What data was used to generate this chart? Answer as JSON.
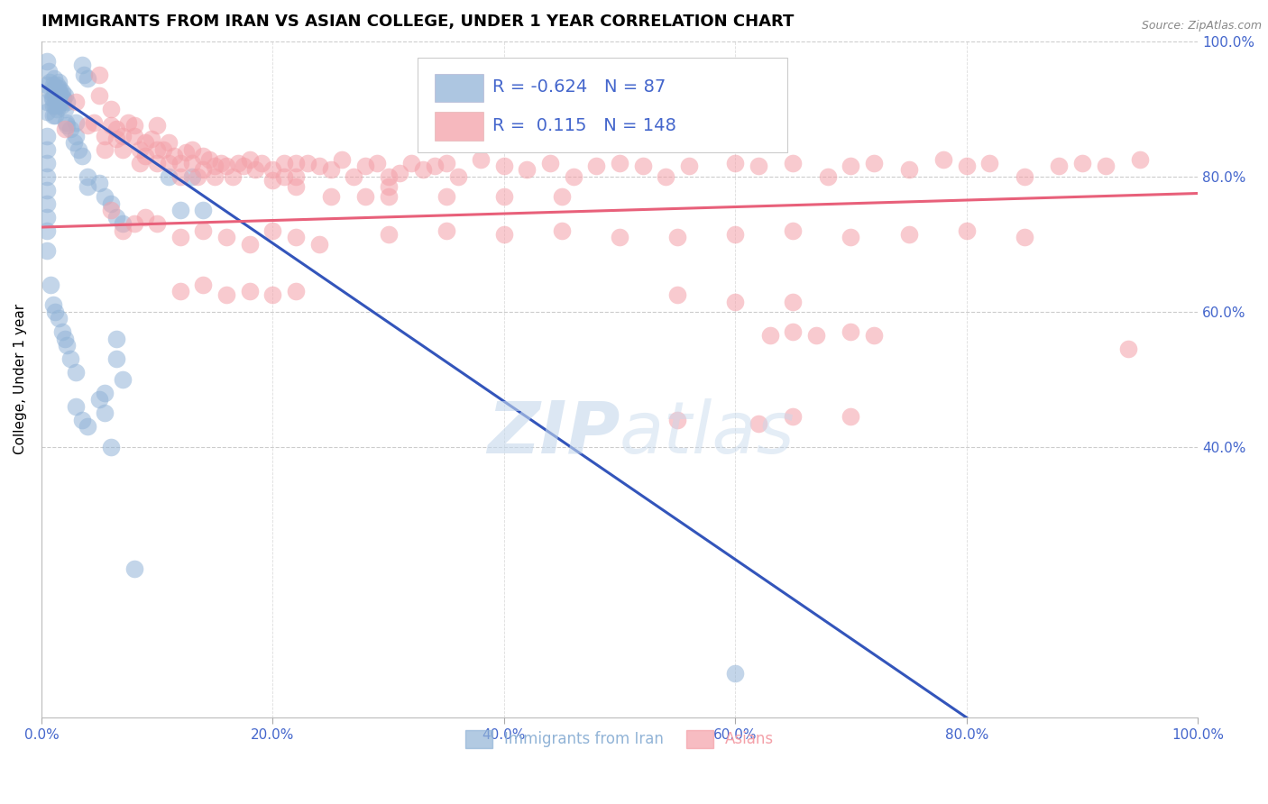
{
  "title": "IMMIGRANTS FROM IRAN VS ASIAN COLLEGE, UNDER 1 YEAR CORRELATION CHART",
  "source": "Source: ZipAtlas.com",
  "ylabel": "College, Under 1 year",
  "legend_label1": "Immigrants from Iran",
  "legend_label2": "Asians",
  "r1": "-0.624",
  "n1": "87",
  "r2": "0.115",
  "n2": "148",
  "blue_color": "#92B4D7",
  "pink_color": "#F4A0A8",
  "line_blue": "#3355BB",
  "line_pink": "#E8607A",
  "text_blue": "#4466CC",
  "watermark_color": "#C5D8EC",
  "blue_scatter": [
    [
      0.5,
      97.0
    ],
    [
      0.5,
      93.5
    ],
    [
      0.5,
      91.0
    ],
    [
      0.5,
      89.5
    ],
    [
      0.6,
      95.5
    ],
    [
      0.7,
      94.0
    ],
    [
      0.8,
      92.5
    ],
    [
      0.9,
      91.5
    ],
    [
      1.0,
      93.5
    ],
    [
      1.0,
      91.5
    ],
    [
      1.0,
      90.5
    ],
    [
      1.0,
      89.0
    ],
    [
      1.1,
      94.5
    ],
    [
      1.1,
      93.0
    ],
    [
      1.2,
      92.0
    ],
    [
      1.2,
      90.5
    ],
    [
      1.2,
      89.0
    ],
    [
      1.3,
      93.5
    ],
    [
      1.3,
      91.5
    ],
    [
      1.3,
      90.0
    ],
    [
      1.4,
      93.0
    ],
    [
      1.4,
      91.5
    ],
    [
      1.4,
      90.5
    ],
    [
      1.5,
      94.0
    ],
    [
      1.5,
      92.5
    ],
    [
      1.5,
      91.0
    ],
    [
      1.6,
      93.0
    ],
    [
      1.6,
      91.5
    ],
    [
      1.7,
      92.0
    ],
    [
      1.7,
      90.5
    ],
    [
      1.8,
      92.5
    ],
    [
      1.8,
      91.0
    ],
    [
      1.9,
      91.5
    ],
    [
      2.0,
      92.0
    ],
    [
      2.0,
      90.0
    ],
    [
      2.1,
      88.0
    ],
    [
      2.2,
      91.0
    ],
    [
      2.2,
      87.5
    ],
    [
      2.5,
      87.0
    ],
    [
      2.8,
      85.0
    ],
    [
      3.0,
      88.0
    ],
    [
      3.0,
      86.0
    ],
    [
      3.2,
      84.0
    ],
    [
      3.5,
      83.0
    ],
    [
      4.0,
      80.0
    ],
    [
      4.0,
      78.5
    ],
    [
      5.0,
      79.0
    ],
    [
      5.5,
      77.0
    ],
    [
      6.0,
      76.0
    ],
    [
      6.5,
      74.0
    ],
    [
      7.0,
      73.0
    ],
    [
      3.5,
      96.5
    ],
    [
      3.7,
      95.0
    ],
    [
      4.0,
      94.5
    ],
    [
      0.5,
      86.0
    ],
    [
      0.5,
      84.0
    ],
    [
      0.5,
      82.0
    ],
    [
      0.5,
      80.0
    ],
    [
      0.5,
      78.0
    ],
    [
      0.5,
      76.0
    ],
    [
      0.5,
      74.0
    ],
    [
      0.5,
      72.0
    ],
    [
      0.5,
      69.0
    ],
    [
      0.8,
      64.0
    ],
    [
      1.0,
      61.0
    ],
    [
      1.2,
      60.0
    ],
    [
      1.5,
      59.0
    ],
    [
      1.8,
      57.0
    ],
    [
      2.0,
      56.0
    ],
    [
      2.2,
      55.0
    ],
    [
      2.5,
      53.0
    ],
    [
      3.0,
      51.0
    ],
    [
      5.0,
      47.0
    ],
    [
      5.5,
      45.0
    ],
    [
      3.0,
      46.0
    ],
    [
      3.5,
      44.0
    ],
    [
      4.0,
      43.0
    ],
    [
      5.5,
      48.0
    ],
    [
      6.0,
      40.0
    ],
    [
      6.5,
      56.0
    ],
    [
      6.5,
      53.0
    ],
    [
      7.0,
      50.0
    ],
    [
      8.0,
      22.0
    ],
    [
      12.0,
      75.0
    ],
    [
      14.0,
      75.0
    ],
    [
      11.0,
      80.0
    ],
    [
      13.0,
      80.0
    ],
    [
      60.0,
      6.5
    ]
  ],
  "pink_scatter": [
    [
      2.0,
      87.0
    ],
    [
      3.0,
      91.0
    ],
    [
      4.0,
      87.5
    ],
    [
      4.5,
      88.0
    ],
    [
      5.0,
      95.0
    ],
    [
      5.0,
      92.0
    ],
    [
      5.5,
      86.0
    ],
    [
      5.5,
      84.0
    ],
    [
      6.0,
      90.0
    ],
    [
      6.0,
      87.5
    ],
    [
      6.5,
      87.0
    ],
    [
      6.5,
      85.5
    ],
    [
      7.0,
      86.0
    ],
    [
      7.0,
      84.0
    ],
    [
      7.5,
      88.0
    ],
    [
      8.0,
      87.5
    ],
    [
      8.0,
      86.0
    ],
    [
      8.5,
      84.0
    ],
    [
      8.5,
      82.0
    ],
    [
      9.0,
      85.0
    ],
    [
      9.0,
      83.0
    ],
    [
      9.5,
      85.5
    ],
    [
      10.0,
      87.5
    ],
    [
      10.0,
      84.0
    ],
    [
      10.0,
      82.0
    ],
    [
      10.5,
      84.0
    ],
    [
      11.0,
      85.0
    ],
    [
      11.0,
      82.0
    ],
    [
      11.5,
      83.0
    ],
    [
      12.0,
      82.0
    ],
    [
      12.0,
      80.0
    ],
    [
      12.5,
      83.5
    ],
    [
      13.0,
      84.0
    ],
    [
      13.0,
      82.0
    ],
    [
      13.5,
      80.0
    ],
    [
      14.0,
      83.0
    ],
    [
      14.0,
      81.0
    ],
    [
      14.5,
      82.5
    ],
    [
      15.0,
      81.5
    ],
    [
      15.0,
      80.0
    ],
    [
      15.5,
      82.0
    ],
    [
      16.0,
      81.5
    ],
    [
      16.5,
      80.0
    ],
    [
      17.0,
      82.0
    ],
    [
      17.5,
      81.5
    ],
    [
      18.0,
      82.5
    ],
    [
      18.5,
      81.0
    ],
    [
      19.0,
      82.0
    ],
    [
      20.0,
      81.0
    ],
    [
      20.0,
      79.5
    ],
    [
      21.0,
      82.0
    ],
    [
      21.0,
      80.0
    ],
    [
      22.0,
      82.0
    ],
    [
      22.0,
      80.0
    ],
    [
      22.0,
      78.5
    ],
    [
      23.0,
      82.0
    ],
    [
      24.0,
      81.5
    ],
    [
      25.0,
      81.0
    ],
    [
      26.0,
      82.5
    ],
    [
      27.0,
      80.0
    ],
    [
      28.0,
      81.5
    ],
    [
      29.0,
      82.0
    ],
    [
      30.0,
      80.0
    ],
    [
      30.0,
      78.5
    ],
    [
      31.0,
      80.5
    ],
    [
      32.0,
      82.0
    ],
    [
      33.0,
      81.0
    ],
    [
      34.0,
      81.5
    ],
    [
      35.0,
      82.0
    ],
    [
      36.0,
      80.0
    ],
    [
      38.0,
      82.5
    ],
    [
      40.0,
      81.5
    ],
    [
      42.0,
      81.0
    ],
    [
      44.0,
      82.0
    ],
    [
      46.0,
      80.0
    ],
    [
      48.0,
      81.5
    ],
    [
      50.0,
      82.0
    ],
    [
      52.0,
      81.5
    ],
    [
      54.0,
      80.0
    ],
    [
      56.0,
      81.5
    ],
    [
      60.0,
      82.0
    ],
    [
      62.0,
      81.5
    ],
    [
      65.0,
      82.0
    ],
    [
      68.0,
      80.0
    ],
    [
      70.0,
      81.5
    ],
    [
      72.0,
      82.0
    ],
    [
      75.0,
      81.0
    ],
    [
      78.0,
      82.5
    ],
    [
      80.0,
      81.5
    ],
    [
      82.0,
      82.0
    ],
    [
      85.0,
      80.0
    ],
    [
      88.0,
      81.5
    ],
    [
      90.0,
      82.0
    ],
    [
      92.0,
      81.5
    ],
    [
      95.0,
      82.5
    ],
    [
      6.0,
      75.0
    ],
    [
      7.0,
      72.0
    ],
    [
      8.0,
      73.0
    ],
    [
      9.0,
      74.0
    ],
    [
      10.0,
      73.0
    ],
    [
      12.0,
      71.0
    ],
    [
      14.0,
      72.0
    ],
    [
      16.0,
      71.0
    ],
    [
      18.0,
      70.0
    ],
    [
      20.0,
      72.0
    ],
    [
      22.0,
      71.0
    ],
    [
      24.0,
      70.0
    ],
    [
      30.0,
      71.5
    ],
    [
      35.0,
      72.0
    ],
    [
      40.0,
      71.5
    ],
    [
      45.0,
      72.0
    ],
    [
      50.0,
      71.0
    ],
    [
      55.0,
      71.0
    ],
    [
      60.0,
      71.5
    ],
    [
      65.0,
      72.0
    ],
    [
      70.0,
      71.0
    ],
    [
      75.0,
      71.5
    ],
    [
      80.0,
      72.0
    ],
    [
      85.0,
      71.0
    ],
    [
      12.0,
      63.0
    ],
    [
      14.0,
      64.0
    ],
    [
      16.0,
      62.5
    ],
    [
      18.0,
      63.0
    ],
    [
      20.0,
      62.5
    ],
    [
      22.0,
      63.0
    ],
    [
      55.0,
      62.5
    ],
    [
      60.0,
      61.5
    ],
    [
      65.0,
      61.5
    ],
    [
      63.0,
      56.5
    ],
    [
      65.0,
      57.0
    ],
    [
      67.0,
      56.5
    ],
    [
      70.0,
      57.0
    ],
    [
      72.0,
      56.5
    ],
    [
      65.0,
      44.5
    ],
    [
      70.0,
      44.5
    ],
    [
      55.0,
      44.0
    ],
    [
      62.0,
      43.5
    ],
    [
      94.0,
      54.5
    ],
    [
      25.0,
      77.0
    ],
    [
      28.0,
      77.0
    ],
    [
      30.0,
      77.0
    ],
    [
      35.0,
      77.0
    ],
    [
      40.0,
      77.0
    ],
    [
      45.0,
      77.0
    ]
  ],
  "blue_line": [
    [
      0.0,
      93.5
    ],
    [
      80.0,
      0.0
    ]
  ],
  "pink_line": [
    [
      0.0,
      72.5
    ],
    [
      100.0,
      77.5
    ]
  ],
  "xmin": 0.0,
  "xmax": 100.0,
  "ymin": 0.0,
  "ymax": 100.0,
  "ytick_vals": [
    40.0,
    60.0,
    80.0,
    100.0
  ],
  "xtick_vals": [
    0.0,
    20.0,
    40.0,
    60.0,
    80.0,
    100.0
  ]
}
